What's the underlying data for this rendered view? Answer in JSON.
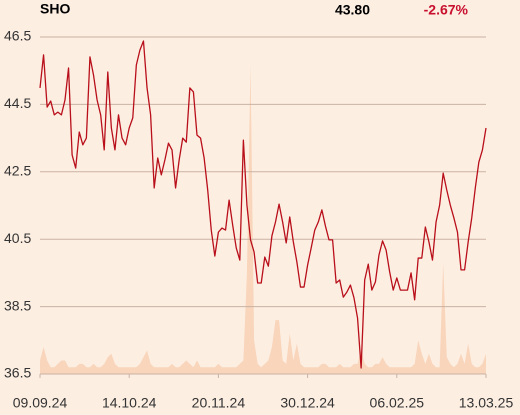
{
  "chart_data": {
    "type": "line",
    "header": {
      "symbol": "SHO",
      "price": "43.80",
      "change": "-2.67%"
    },
    "values": [
      44.99,
      45.97,
      44.42,
      44.6,
      44.19,
      44.27,
      44.19,
      44.63,
      45.58,
      43.0,
      42.61,
      43.68,
      43.3,
      43.5,
      45.91,
      45.37,
      44.63,
      44.19,
      43.15,
      45.46,
      43.8,
      43.15,
      44.19,
      43.5,
      43.3,
      43.8,
      44.1,
      45.67,
      46.11,
      46.38,
      44.99,
      44.19,
      42.02,
      42.91,
      42.41,
      42.85,
      43.35,
      43.15,
      42.02,
      42.85,
      43.5,
      43.38,
      44.99,
      44.87,
      43.59,
      43.5,
      42.91,
      41.96,
      40.77,
      40.0,
      40.71,
      40.83,
      40.77,
      41.66,
      40.92,
      40.24,
      39.88,
      43.44,
      41.51,
      40.48,
      40.12,
      39.2,
      39.2,
      39.97,
      39.7,
      40.6,
      41.01,
      41.54,
      41.01,
      40.39,
      41.16,
      40.42,
      39.82,
      39.08,
      39.08,
      39.73,
      40.24,
      40.77,
      41.01,
      41.37,
      40.89,
      40.48,
      40.48,
      39.2,
      39.29,
      38.78,
      38.93,
      39.14,
      38.76,
      38.16,
      36.68,
      39.29,
      39.76,
      38.99,
      39.23,
      40.03,
      40.45,
      40.18,
      39.53,
      38.99,
      39.35,
      38.99,
      38.99,
      38.99,
      39.5,
      38.7,
      39.94,
      39.94,
      40.86,
      40.42,
      39.88,
      41.01,
      41.51,
      42.46,
      41.96,
      41.51,
      41.13,
      40.71,
      39.59,
      39.59,
      40.42,
      41.13,
      42.02,
      42.79,
      43.15,
      43.8
    ],
    "volume": [
      4,
      8,
      4,
      2,
      2,
      3,
      4,
      4,
      2,
      2,
      2,
      3,
      3,
      2,
      2,
      3,
      2,
      2,
      3,
      5,
      6,
      3,
      2,
      2,
      2,
      2,
      2,
      2,
      3,
      5,
      7,
      3,
      2,
      2,
      2,
      2,
      2,
      3,
      2,
      2,
      3,
      4,
      3,
      2,
      4,
      2,
      2,
      2,
      2,
      2,
      3,
      2,
      2,
      2,
      2,
      2,
      3,
      4,
      30,
      92,
      10,
      3,
      2,
      3,
      4,
      8,
      16,
      16,
      4,
      3,
      12,
      4,
      9,
      3,
      2,
      2,
      2,
      2,
      2,
      3,
      3,
      2,
      2,
      2,
      3,
      2,
      2,
      2,
      3,
      3,
      7,
      3,
      2,
      2,
      3,
      3,
      5,
      3,
      2,
      2,
      2,
      2,
      2,
      2,
      2,
      3,
      10,
      6,
      3,
      6,
      3,
      2,
      2,
      33,
      5,
      3,
      2,
      3,
      6,
      3,
      9,
      3,
      2,
      2,
      3,
      6
    ],
    "color": "#b80f1a",
    "volume_color": "#f8d5bb",
    "xlim": [
      0,
      125
    ],
    "xticks": [
      {
        "value": 0,
        "label": "09.09.24"
      },
      {
        "value": 25,
        "label": "14.10.24"
      },
      {
        "value": 50,
        "label": "20.11.24"
      },
      {
        "value": 75,
        "label": "30.12.24"
      },
      {
        "value": 100,
        "label": "06.02.25"
      },
      {
        "value": 125,
        "label": "13.03.25"
      }
    ],
    "ylim": [
      36.5,
      46.5
    ],
    "yticks": [
      36.5,
      38.5,
      40.5,
      42.5,
      44.5,
      46.5
    ],
    "y2lim": [
      0,
      100
    ],
    "grid": true
  }
}
